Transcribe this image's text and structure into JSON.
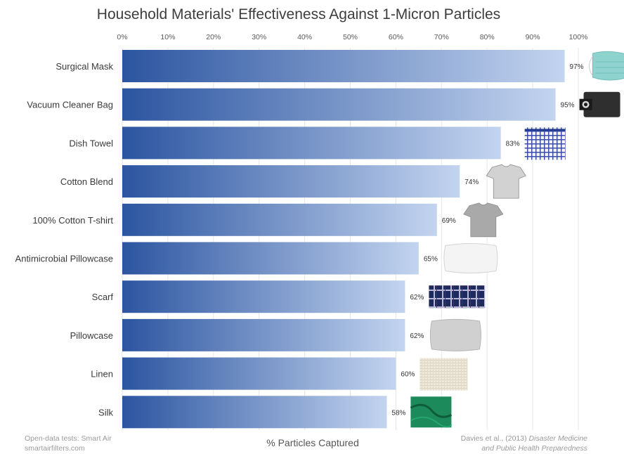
{
  "chart_data": {
    "type": "bar",
    "orientation": "horizontal",
    "title": "Household Materials' Effectiveness Against 1-Micron Particles",
    "xlabel": "% Particles Captured",
    "ylabel": "",
    "xlim": [
      0,
      100
    ],
    "x_ticks": [
      "0%",
      "10%",
      "20%",
      "30%",
      "40%",
      "50%",
      "60%",
      "70%",
      "80%",
      "90%",
      "100%"
    ],
    "categories": [
      "Surgical Mask",
      "Vacuum Cleaner Bag",
      "Dish Towel",
      "Cotton Blend",
      "100% Cotton T-shirt",
      "Antimicrobial Pillowcase",
      "Scarf",
      "Pillowcase",
      "Linen",
      "Silk"
    ],
    "values": [
      97,
      95,
      83,
      74,
      69,
      65,
      62,
      62,
      60,
      58
    ],
    "value_labels": [
      "97%",
      "95%",
      "83%",
      "74%",
      "69%",
      "65%",
      "62%",
      "62%",
      "60%",
      "58%"
    ],
    "grid": true,
    "bar_gradient": {
      "start": "#2c55a0",
      "end": "#c3d4ef"
    },
    "material_icons": [
      "surgical-mask-icon",
      "vacuum-bag-icon",
      "dish-towel-icon",
      "cotton-blend-shirt-icon",
      "cotton-tshirt-icon",
      "antimicrobial-pillow-icon",
      "scarf-icon",
      "pillowcase-icon",
      "linen-icon",
      "silk-icon"
    ]
  },
  "footer": {
    "source_left_line1": "Open-data tests: Smart Air",
    "source_left_line2": "smartairfilters.com",
    "citation_prefix": "Davies et al., (2013) ",
    "citation_italic_line1": "Disaster Medicine",
    "citation_italic_line2": "and Public Health Preparedness"
  },
  "colors": {
    "title": "#3d3d3d",
    "grid": "#e6e6e6",
    "footer": "#9a9a9a"
  }
}
